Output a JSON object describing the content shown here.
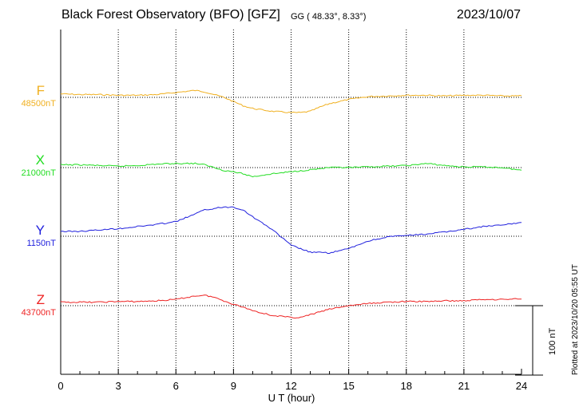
{
  "header": {
    "title": "Black Forest Observatory (BFO)  [GFZ]",
    "subtitle": "GG ( 48.33°,   8.33°)",
    "date": "2023/10/07"
  },
  "side": {
    "plotted": "Plotted at 2023/10/20 05:55 UT",
    "scale_label": "100 nT"
  },
  "chart_data": {
    "type": "line",
    "xlabel": "U T (hour)",
    "xlim": [
      0,
      24
    ],
    "xticks": [
      "0",
      "3",
      "6",
      "9",
      "12",
      "15",
      "18",
      "21",
      "24"
    ],
    "scale_bar_nT": 100,
    "series": [
      {
        "name": "F",
        "baseline_label": "48500nT",
        "color": "#f0b020",
        "x": [
          0,
          1,
          2,
          3,
          4,
          5,
          6,
          7,
          7.5,
          8,
          8.5,
          9,
          9.5,
          10,
          11,
          12,
          12.5,
          13,
          13.5,
          14,
          15,
          16,
          17,
          18,
          19,
          20,
          21,
          22,
          23,
          24
        ],
        "y": [
          48505,
          48504,
          48504,
          48503,
          48503,
          48504,
          48507,
          48510,
          48508,
          48504,
          48500,
          48494,
          48488,
          48484,
          48480,
          48478,
          48478,
          48480,
          48486,
          48491,
          48497,
          48501,
          48502,
          48503,
          48503,
          48502,
          48503,
          48503,
          48502,
          48502
        ]
      },
      {
        "name": "X",
        "baseline_label": "21000nT",
        "color": "#22dd22",
        "x": [
          0,
          1,
          2,
          3,
          4,
          5,
          6,
          7,
          7.5,
          8,
          8.5,
          9,
          9.5,
          10,
          11,
          12,
          13,
          14,
          15,
          16,
          17,
          18,
          18.5,
          19,
          20,
          21,
          22,
          23,
          23.5,
          24
        ],
        "y": [
          21004,
          21004,
          21003,
          21002,
          21003,
          21005,
          21006,
          21006,
          21004,
          21000,
          20996,
          20994,
          20991,
          20987,
          20991,
          20994,
          20997,
          21000,
          21000,
          21001,
          21002,
          21003,
          21004,
          21006,
          21003,
          21001,
          21001,
          21000,
          20998,
          20996
        ]
      },
      {
        "name": "Y",
        "baseline_label": "1150nT",
        "color": "#2020dd",
        "x": [
          0,
          1,
          2,
          3,
          4,
          5,
          6,
          7,
          7.5,
          8,
          8.5,
          9,
          9.5,
          10,
          11,
          12,
          13,
          14,
          15,
          16,
          17,
          18,
          19,
          20,
          21,
          22,
          23,
          24
        ],
        "y": [
          1157,
          1157,
          1159,
          1161,
          1164,
          1167,
          1171,
          1182,
          1188,
          1190,
          1192,
          1192,
          1188,
          1178,
          1160,
          1137,
          1127,
          1126,
          1132,
          1143,
          1149,
          1151,
          1153,
          1156,
          1160,
          1164,
          1166,
          1170
        ]
      },
      {
        "name": "Z",
        "baseline_label": "43700nT",
        "color": "#ee2222",
        "x": [
          0,
          1,
          2,
          3,
          4,
          5,
          6,
          7,
          7.5,
          8,
          8.5,
          9,
          9.5,
          10,
          11,
          12,
          12.5,
          13,
          14,
          15,
          16,
          17,
          18,
          19,
          20,
          21,
          22,
          23,
          24
        ],
        "y": [
          43705,
          43705,
          43705,
          43706,
          43706,
          43707,
          43709,
          43714,
          43715,
          43712,
          43707,
          43702,
          43698,
          43693,
          43686,
          43683,
          43683,
          43687,
          43695,
          43700,
          43703,
          43705,
          43706,
          43706,
          43707,
          43707,
          43709,
          43709,
          43710
        ]
      }
    ]
  }
}
